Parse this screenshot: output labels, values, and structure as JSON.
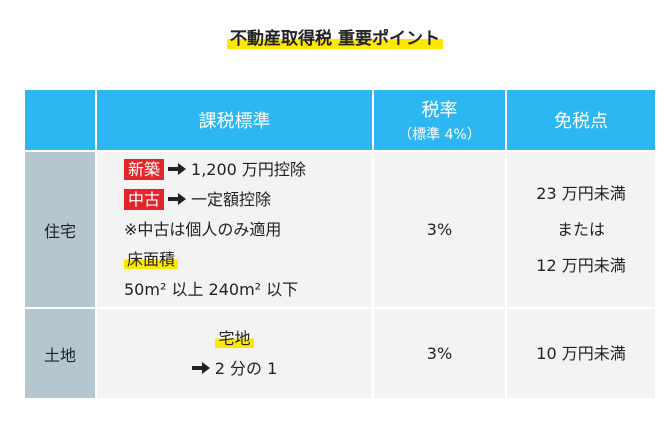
{
  "title": "不動産取得税 重要ポイント",
  "table": {
    "header": {
      "basis": "課税標準",
      "rate": "税率",
      "rate_note": "（標準 4%）",
      "exemption": "免税点"
    },
    "rows": [
      {
        "label": "住宅",
        "basis": [
          {
            "badge": "新築",
            "arrow": true,
            "text": "1,200 万円控除"
          },
          {
            "badge": "中古",
            "arrow": true,
            "text": "一定額控除"
          },
          {
            "text": "※中古は個人のみ適用"
          },
          {
            "highlight": "床面積"
          },
          {
            "text": "50m² 以上 240m² 以下"
          }
        ],
        "rate": "3%",
        "exemption": [
          "23 万円未満",
          "または",
          "12 万円未満"
        ]
      },
      {
        "label": "土地",
        "basis": [
          {
            "highlight": "宅地"
          },
          {
            "arrow": true,
            "text": "2 分の 1"
          }
        ],
        "rate": "3%",
        "exemption": [
          "10 万円未満"
        ]
      }
    ]
  }
}
